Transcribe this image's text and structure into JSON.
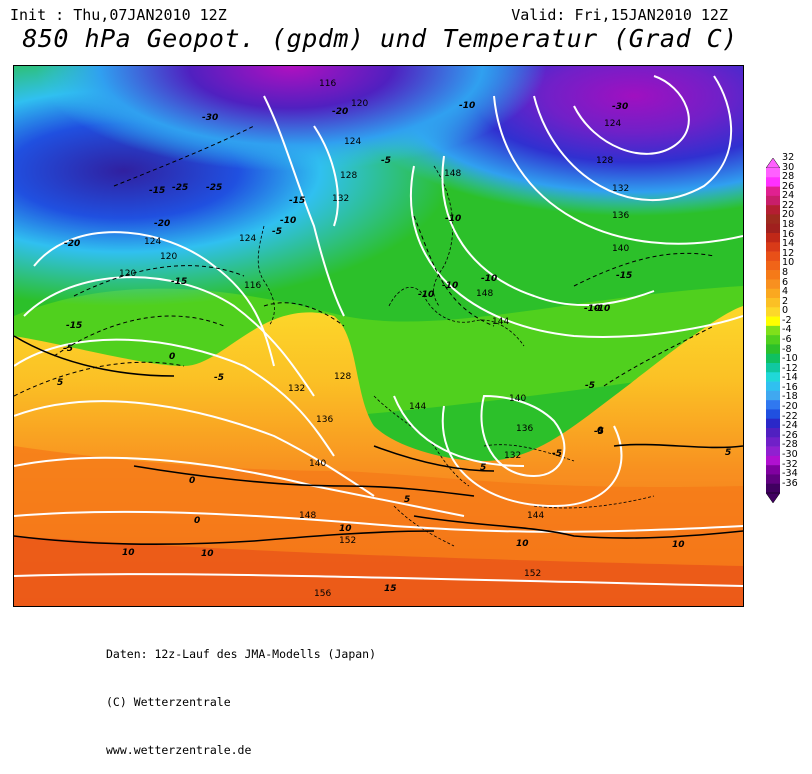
{
  "header": {
    "init": "Init : Thu,07JAN2010 12Z",
    "valid": "Valid: Fri,15JAN2010 12Z",
    "title": "850 hPa Geopot. (gpdm) und Temperatur (Grad C)"
  },
  "map": {
    "geopotential_labels": [
      "116",
      "120",
      "124",
      "128",
      "132",
      "136",
      "140",
      "144",
      "148",
      "152",
      "156",
      "124",
      "128",
      "132",
      "136",
      "140",
      "120",
      "116",
      "124",
      "120",
      "124",
      "132",
      "128",
      "148",
      "148",
      "144",
      "140",
      "136",
      "132",
      "144",
      "152"
    ],
    "temperature_labels": [
      "-30",
      "-20",
      "-10",
      "-30",
      "-25",
      "-25",
      "-15",
      "-15",
      "-20",
      "-20",
      "-15",
      "-10",
      "-5",
      "-15",
      "-10",
      "-10",
      "-5",
      "-15",
      "-10",
      "-10",
      "-10",
      "-5",
      "-5",
      "0",
      "0",
      "5",
      "10",
      "10",
      "0",
      "5",
      "10",
      "10",
      "15",
      "-5",
      "-10",
      "-5",
      "5",
      "5",
      "-5",
      "0",
      "10"
    ]
  },
  "colorbar": {
    "labels": [
      "32",
      "30",
      "28",
      "26",
      "24",
      "22",
      "20",
      "18",
      "16",
      "14",
      "12",
      "10",
      "8",
      "6",
      "4",
      "2",
      "0",
      "-2",
      "-4",
      "-6",
      "-8",
      "-10",
      "-12",
      "-14",
      "-16",
      "-18",
      "-20",
      "-22",
      "-24",
      "-26",
      "-28",
      "-30",
      "-32",
      "-34",
      "-36"
    ],
    "colors": [
      "#ff60ff",
      "#ff30ff",
      "#e02090",
      "#c81e6a",
      "#b41e32",
      "#9e2a1e",
      "#a0201e",
      "#c02818",
      "#d83a18",
      "#e85018",
      "#f06418",
      "#f57a18",
      "#f89020",
      "#faa820",
      "#fbc025",
      "#fcd82a",
      "#ffff00",
      "#80e01a",
      "#50d01e",
      "#2cc02a",
      "#10c060",
      "#10c8a0",
      "#20d8d8",
      "#30c0f0",
      "#40a8f0",
      "#3078f0",
      "#2050e0",
      "#2a28c8",
      "#5020c0",
      "#7020c8",
      "#9020d0",
      "#b010d0",
      "#8000a0",
      "#600080",
      "#400060"
    ]
  },
  "footer": {
    "line1": "Daten: 12z-Lauf des JMA-Modells (Japan)",
    "line2": "(C) Wetterzentrale",
    "line3": "www.wetterzentrale.de"
  }
}
